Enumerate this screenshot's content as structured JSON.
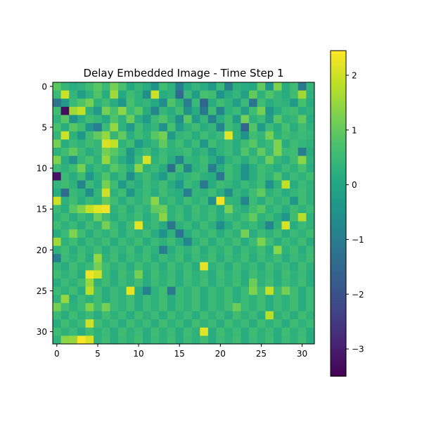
{
  "chart_data": {
    "type": "heatmap",
    "title": "Delay Embedded Image - Time Step 1",
    "xlabel": "",
    "ylabel": "",
    "rows": 32,
    "cols": 32,
    "x_ticks": [
      0,
      5,
      10,
      15,
      20,
      25,
      30
    ],
    "y_ticks": [
      0,
      5,
      10,
      15,
      20,
      25,
      30
    ],
    "colormap": "viridis",
    "colorbar": {
      "vmin": -3.5,
      "vmax": 2.45,
      "ticks": [
        -3,
        -2,
        -1,
        0,
        1,
        2
      ],
      "tick_labels": [
        "−3",
        "−2",
        "−1",
        "0",
        "1",
        "2"
      ]
    },
    "grid": false,
    "values": [
      [
        0.9,
        0.4,
        0.2,
        0.3,
        0.6,
        0.9,
        0.5,
        1.2,
        0.7,
        0.1,
        0.4,
        0.2,
        -0.5,
        0.6,
        0.3,
        -1.0,
        0.1,
        0.4,
        0.2,
        -0.3,
        0.5,
        -0.9,
        0.3,
        0.2,
        0.1,
        1.0,
        -0.4,
        1.3,
        0.2,
        0.6,
        -1.1,
        0.4
      ],
      [
        0.5,
        2.0,
        0.4,
        -0.2,
        0.3,
        0.8,
        0.2,
        1.6,
        0.1,
        0.6,
        0.3,
        -0.6,
        2.0,
        0.2,
        0.3,
        -1.4,
        0.5,
        -0.2,
        0.7,
        0.6,
        -0.5,
        0.2,
        0.4,
        -0.1,
        1.0,
        0.3,
        0.8,
        0.4,
        0.2,
        0.6,
        1.6,
        0.3
      ],
      [
        -1.2,
        -0.3,
        0.5,
        0.8,
        1.2,
        0.3,
        0.6,
        0.2,
        -0.4,
        0.7,
        0.3,
        0.4,
        0.1,
        -0.6,
        0.8,
        0.3,
        -1.0,
        0.5,
        -1.6,
        0.2,
        0.6,
        0.3,
        -0.2,
        0.5,
        -1.2,
        0.6,
        0.2,
        0.4,
        0.3,
        -0.3,
        0.7,
        0.2
      ],
      [
        0.6,
        -3.3,
        1.6,
        1.9,
        0.3,
        -0.3,
        1.2,
        0.7,
        1.4,
        0.5,
        0.9,
        0.2,
        -0.8,
        0.4,
        0.2,
        0.6,
        -0.5,
        0.2,
        -1.2,
        0.6,
        -0.8,
        0.3,
        0.5,
        -0.2,
        0.6,
        1.2,
        -0.4,
        0.2,
        0.5,
        0.6,
        0.2,
        0.3
      ],
      [
        0.3,
        0.9,
        -0.5,
        0.2,
        0.6,
        0.4,
        0.1,
        0.8,
        0.3,
        1.1,
        0.2,
        -0.3,
        0.5,
        0.8,
        0.3,
        -0.6,
        0.9,
        -0.3,
        0.4,
        -0.9,
        0.2,
        0.6,
        -0.3,
        1.2,
        0.3,
        0.5,
        -0.2,
        0.9,
        0.3,
        0.4,
        1.0,
        0.2
      ],
      [
        0.7,
        0.2,
        0.9,
        0.6,
        -0.4,
        -1.0,
        0.5,
        1.5,
        0.3,
        -0.3,
        0.6,
        0.2,
        0.4,
        -0.5,
        0.7,
        -0.2,
        0.3,
        0.6,
        0.2,
        0.4,
        -0.8,
        0.6,
        0.3,
        -1.6,
        0.8,
        -0.3,
        0.5,
        0.2,
        0.7,
        0.2,
        0.6,
        0.3
      ],
      [
        0.4,
        2.0,
        0.3,
        -0.4,
        0.6,
        1.0,
        1.5,
        0.4,
        1.0,
        0.2,
        0.6,
        0.3,
        0.9,
        1.2,
        -0.3,
        0.4,
        0.5,
        0.2,
        0.6,
        0.3,
        0.5,
        2.2,
        0.3,
        -0.5,
        0.6,
        0.4,
        1.2,
        0.3,
        0.6,
        0.4,
        0.5,
        0.4
      ],
      [
        1.2,
        0.2,
        0.5,
        0.3,
        0.6,
        0.4,
        2.1,
        1.9,
        0.3,
        0.6,
        -0.3,
        0.2,
        0.4,
        1.0,
        0.3,
        0.6,
        0.2,
        0.5,
        -0.4,
        0.6,
        0.3,
        0.5,
        0.2,
        0.6,
        0.9,
        0.3,
        0.5,
        1.3,
        0.2,
        0.6,
        0.4,
        0.3
      ],
      [
        0.3,
        0.6,
        1.0,
        0.5,
        0.2,
        0.4,
        1.2,
        0.9,
        0.5,
        -0.4,
        0.3,
        0.6,
        0.2,
        0.5,
        0.3,
        0.4,
        0.6,
        0.2,
        0.4,
        -0.2,
        0.3,
        0.5,
        0.2,
        0.8,
        0.3,
        1.0,
        0.4,
        1.3,
        0.5,
        0.6,
        -1.0,
        0.2
      ],
      [
        1.3,
        0.2,
        -0.5,
        0.4,
        0.7,
        0.3,
        1.5,
        0.6,
        0.2,
        -0.3,
        0.5,
        2.1,
        0.3,
        0.6,
        0.2,
        -0.8,
        0.4,
        0.3,
        0.6,
        0.2,
        -0.5,
        0.3,
        0.5,
        0.2,
        0.6,
        0.3,
        1.1,
        0.4,
        0.2,
        0.6,
        1.4,
        0.3
      ],
      [
        0.5,
        0.3,
        0.6,
        1.2,
        0.2,
        0.5,
        0.3,
        0.9,
        0.6,
        0.2,
        1.4,
        0.3,
        0.5,
        0.2,
        -1.3,
        0.6,
        -0.8,
        0.3,
        0.5,
        -1.0,
        0.2,
        0.6,
        0.3,
        -0.5,
        0.2,
        0.6,
        0.4,
        0.2,
        0.5,
        0.3,
        0.7,
        0.2
      ],
      [
        -3.2,
        0.5,
        0.2,
        0.6,
        -0.4,
        0.3,
        0.8,
        0.2,
        0.5,
        -0.6,
        0.3,
        0.6,
        0.2,
        -0.3,
        0.5,
        0.2,
        0.4,
        0.6,
        0.3,
        0.2,
        -1.2,
        0.6,
        0.3,
        -0.5,
        0.2,
        0.6,
        0.3,
        0.8,
        0.2,
        0.5,
        0.3,
        0.6
      ],
      [
        0.4,
        0.6,
        0.3,
        -0.8,
        0.5,
        0.2,
        1.2,
        0.6,
        -0.3,
        0.4,
        0.2,
        0.5,
        0.3,
        0.6,
        0.2,
        -0.4,
        0.5,
        0.3,
        -1.1,
        0.2,
        0.6,
        0.4,
        0.2,
        0.5,
        0.3,
        0.6,
        -0.5,
        0.3,
        1.9,
        0.2,
        0.5,
        0.3
      ],
      [
        0.2,
        -1.4,
        0.5,
        0.3,
        -0.6,
        0.4,
        2.0,
        0.3,
        0.6,
        -0.4,
        0.3,
        0.5,
        0.2,
        0.6,
        0.3,
        0.2,
        -1.0,
        0.4,
        0.3,
        0.6,
        0.2,
        -0.6,
        0.4,
        0.2,
        0.6,
        1.0,
        0.3,
        0.5,
        0.2,
        0.4,
        0.6,
        0.3
      ],
      [
        2.0,
        0.3,
        0.6,
        0.2,
        0.5,
        0.3,
        1.0,
        0.6,
        0.2,
        0.5,
        0.3,
        0.6,
        1.4,
        0.3,
        0.5,
        0.2,
        0.6,
        0.3,
        0.5,
        -0.6,
        2.3,
        0.4,
        0.3,
        -0.8,
        0.5,
        0.2,
        0.6,
        0.3,
        0.5,
        -0.4,
        0.6,
        0.3
      ],
      [
        0.5,
        0.2,
        0.9,
        1.3,
        1.9,
        2.2,
        2.3,
        0.3,
        0.6,
        0.2,
        0.5,
        0.3,
        1.0,
        1.1,
        0.3,
        0.5,
        0.2,
        0.6,
        0.3,
        0.5,
        0.2,
        1.2,
        0.4,
        0.2,
        0.6,
        0.9,
        0.3,
        0.5,
        0.2,
        0.6,
        0.3,
        0.5
      ],
      [
        0.3,
        0.6,
        0.2,
        0.5,
        0.3,
        1.1,
        0.6,
        0.2,
        0.5,
        0.3,
        0.6,
        0.2,
        0.5,
        1.4,
        0.3,
        0.6,
        0.2,
        0.5,
        0.3,
        0.6,
        0.2,
        0.5,
        0.3,
        0.6,
        1.0,
        0.3,
        0.5,
        0.2,
        -0.4,
        0.6,
        1.8,
        0.3
      ],
      [
        0.6,
        0.3,
        0.5,
        0.2,
        0.6,
        0.3,
        1.2,
        0.5,
        0.2,
        0.6,
        2.2,
        0.3,
        0.5,
        0.2,
        -1.2,
        0.3,
        0.5,
        0.2,
        0.6,
        0.3,
        -0.6,
        0.2,
        0.6,
        0.3,
        0.5,
        0.2,
        -0.8,
        0.3,
        2.1,
        0.2,
        0.5,
        0.3
      ],
      [
        0.2,
        0.5,
        1.3,
        0.6,
        0.2,
        0.5,
        0.3,
        0.6,
        0.2,
        0.5,
        0.3,
        0.6,
        0.2,
        -0.5,
        0.3,
        -1.2,
        0.2,
        0.5,
        0.3,
        0.6,
        0.2,
        0.5,
        0.3,
        1.2,
        0.2,
        0.5,
        0.3,
        0.6,
        0.2,
        0.5,
        0.3,
        0.6
      ],
      [
        1.6,
        0.3,
        0.6,
        0.2,
        0.5,
        0.3,
        0.6,
        0.2,
        0.5,
        0.3,
        0.6,
        0.2,
        0.5,
        0.3,
        0.6,
        0.2,
        -0.8,
        0.3,
        0.6,
        0.2,
        0.5,
        0.3,
        0.6,
        0.2,
        0.5,
        1.3,
        0.6,
        0.2,
        0.5,
        0.3,
        0.6,
        0.2
      ],
      [
        0.3,
        0.6,
        0.2,
        0.5,
        0.3,
        0.6,
        0.2,
        0.5,
        0.3,
        0.6,
        0.2,
        0.5,
        0.3,
        -1.0,
        0.2,
        0.5,
        0.3,
        0.6,
        0.2,
        0.5,
        0.3,
        0.6,
        0.2,
        0.5,
        0.3,
        0.6,
        0.2,
        1.4,
        0.3,
        0.6,
        0.2,
        0.5
      ],
      [
        -1.0,
        0.5,
        0.3,
        0.6,
        0.2,
        1.5,
        0.3,
        0.6,
        0.2,
        0.5,
        0.3,
        0.6,
        0.2,
        0.5,
        0.3,
        0.6,
        0.2,
        0.5,
        0.3,
        0.6,
        0.2,
        0.5,
        0.3,
        0.6,
        0.2,
        0.5,
        0.3,
        0.6,
        0.2,
        0.5,
        0.3,
        0.6
      ],
      [
        0.4,
        0.2,
        0.6,
        0.3,
        0.5,
        1.2,
        0.6,
        0.3,
        0.5,
        0.2,
        0.6,
        0.3,
        0.5,
        0.2,
        0.6,
        0.3,
        0.5,
        0.2,
        2.2,
        0.3,
        0.5,
        0.2,
        0.6,
        0.3,
        0.5,
        0.2,
        0.6,
        0.3,
        0.5,
        0.2,
        0.6,
        0.3
      ],
      [
        0.6,
        0.3,
        0.5,
        0.2,
        2.3,
        2.0,
        0.5,
        0.2,
        0.6,
        0.3,
        1.2,
        0.2,
        0.6,
        0.3,
        0.5,
        0.2,
        0.6,
        0.3,
        0.5,
        0.2,
        0.6,
        0.3,
        0.5,
        0.2,
        0.6,
        0.3,
        0.5,
        0.2,
        0.6,
        0.3,
        0.5,
        0.2
      ],
      [
        0.2,
        0.5,
        0.3,
        0.6,
        1.5,
        0.3,
        0.6,
        0.2,
        0.5,
        0.3,
        0.6,
        0.2,
        0.5,
        0.3,
        0.6,
        0.2,
        0.5,
        0.3,
        0.6,
        0.2,
        0.5,
        0.3,
        0.6,
        0.2,
        1.1,
        0.3,
        0.6,
        0.2,
        0.5,
        0.3,
        0.6,
        0.2
      ],
      [
        0.5,
        0.3,
        0.6,
        0.2,
        1.8,
        0.6,
        0.2,
        0.5,
        0.3,
        2.2,
        0.2,
        -0.9,
        0.3,
        0.6,
        -1.1,
        0.5,
        0.3,
        0.6,
        0.2,
        0.5,
        0.3,
        0.6,
        0.2,
        0.5,
        1.3,
        0.6,
        1.9,
        0.5,
        1.2,
        0.6,
        0.2,
        0.5
      ],
      [
        0.3,
        1.5,
        0.2,
        0.5,
        0.3,
        0.6,
        0.2,
        0.5,
        0.3,
        0.6,
        0.2,
        0.5,
        0.3,
        0.6,
        0.2,
        0.5,
        0.3,
        0.6,
        0.2,
        0.5,
        0.3,
        0.6,
        0.2,
        0.5,
        0.3,
        0.6,
        0.2,
        0.5,
        0.3,
        0.6,
        0.2,
        0.5
      ],
      [
        1.2,
        0.6,
        0.3,
        0.5,
        1.3,
        0.6,
        1.2,
        0.5,
        0.3,
        0.6,
        0.2,
        0.5,
        0.3,
        0.6,
        0.2,
        0.5,
        0.3,
        0.6,
        0.2,
        0.5,
        0.3,
        0.6,
        1.1,
        0.5,
        0.3,
        0.6,
        0.2,
        0.5,
        0.3,
        0.6,
        0.2,
        0.5
      ],
      [
        0.5,
        0.2,
        0.6,
        0.3,
        0.5,
        0.2,
        0.6,
        0.3,
        0.5,
        0.2,
        0.6,
        0.3,
        0.5,
        0.2,
        0.6,
        0.3,
        0.5,
        0.2,
        0.6,
        0.3,
        0.5,
        0.2,
        0.6,
        0.3,
        0.5,
        0.2,
        1.8,
        0.3,
        0.5,
        0.2,
        0.6,
        0.3
      ],
      [
        0.2,
        0.6,
        0.3,
        0.5,
        2.0,
        0.6,
        0.3,
        0.5,
        0.2,
        0.6,
        0.3,
        0.5,
        0.2,
        0.6,
        0.3,
        0.5,
        0.2,
        0.6,
        0.3,
        0.5,
        0.2,
        0.6,
        0.3,
        0.5,
        0.2,
        0.6,
        0.3,
        0.5,
        0.2,
        0.6,
        0.3,
        0.5
      ],
      [
        0.6,
        0.3,
        0.5,
        0.2,
        0.6,
        0.3,
        0.5,
        0.2,
        0.6,
        0.3,
        0.5,
        0.2,
        0.6,
        0.3,
        0.5,
        0.2,
        0.6,
        0.3,
        2.2,
        0.2,
        0.6,
        0.3,
        0.5,
        0.2,
        0.6,
        0.3,
        0.5,
        0.2,
        0.6,
        0.3,
        0.5,
        0.2
      ],
      [
        0.3,
        1.4,
        1.5,
        2.4,
        2.1,
        0.3,
        0.6,
        0.2,
        0.5,
        0.3,
        0.6,
        0.2,
        0.5,
        0.3,
        0.6,
        0.2,
        0.5,
        0.3,
        0.6,
        0.2,
        0.5,
        0.3,
        0.6,
        0.2,
        0.5,
        0.3,
        0.6,
        0.2,
        0.5,
        0.3,
        0.6,
        0.2
      ]
    ]
  }
}
